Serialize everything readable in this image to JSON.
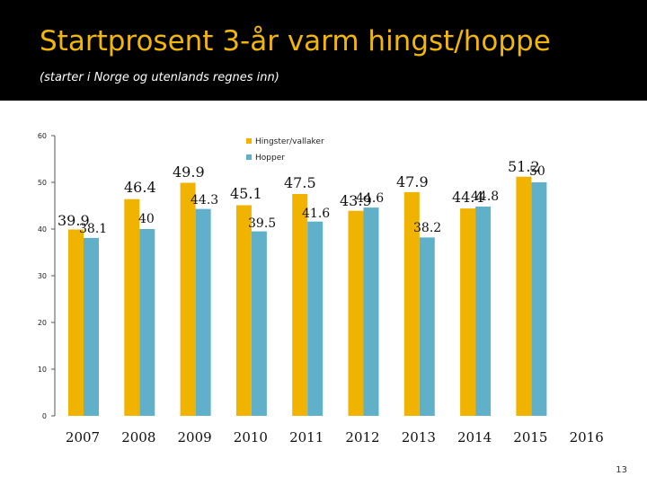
{
  "slide": {
    "title": "Startprosent 3-år varm hingst/hoppe",
    "subtitle": "(starter i Norge og utenlands regnes inn)",
    "page_number": "13"
  },
  "colors": {
    "header_bg": "#000000",
    "title": "#f2b705",
    "hingster": "#f0b400",
    "hopper": "#60b0ca",
    "axis": "#555555"
  },
  "chart_data": {
    "type": "bar",
    "title": "",
    "xlabel": "",
    "ylabel": "",
    "ylim": [
      0,
      60
    ],
    "yticks": [
      0,
      10,
      20,
      30,
      40,
      50,
      60
    ],
    "categories": [
      "2007",
      "2008",
      "2009",
      "2010",
      "2011",
      "2012",
      "2013",
      "2014",
      "2015",
      "2016"
    ],
    "series": [
      {
        "name": "Hingster/vallaker",
        "values": [
          39.9,
          46.4,
          49.9,
          45.1,
          47.5,
          43.9,
          47.9,
          44.4,
          51.2,
          null
        ],
        "labels": [
          "39.9",
          "46.4",
          "49.9",
          "45.1",
          "47.5",
          "43.9",
          "47.9",
          "44.4",
          "51.2",
          ""
        ]
      },
      {
        "name": "Hopper",
        "values": [
          38.1,
          40,
          44.3,
          39.5,
          41.6,
          44.6,
          38.2,
          44.8,
          50,
          null
        ],
        "labels": [
          "38.1",
          "40",
          "44.3",
          "39.5",
          "41.6",
          "44.6",
          "38.2",
          "44.8",
          "50",
          ""
        ]
      }
    ],
    "legend_position": "top-center",
    "grid": false
  }
}
